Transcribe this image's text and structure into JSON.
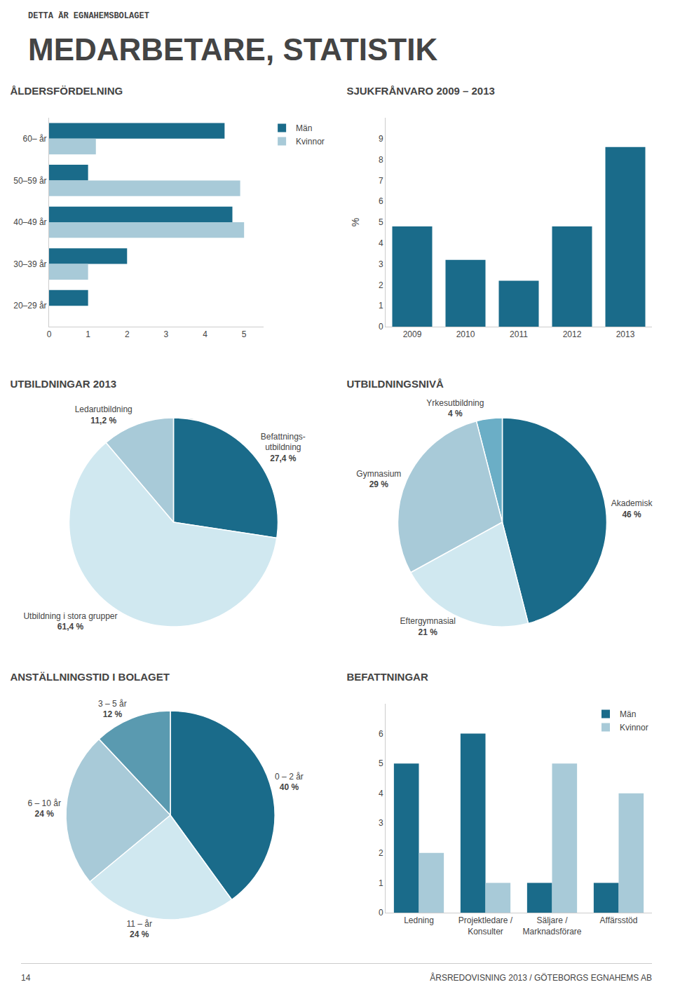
{
  "title": "MEDARBETARE, STATISTIK",
  "subtitle": "DETTA ÄR EGNAHEMSBOLAGET",
  "annotations": [
    "14",
    "ÅRSREDOVISNING 2013 / GÖTEBORGS EGNAHEMS AB"
  ],
  "chart_data": [
    {
      "type": "bar",
      "orientation": "horizontal",
      "title": "ÅLDERSFÖRDELNING",
      "categories": [
        "60– år",
        "50–59 år",
        "40–49 år",
        "30–39 år",
        "20–29 år"
      ],
      "series": [
        {
          "name": "Män",
          "color": "#1a6b8a",
          "values": [
            4.5,
            1.0,
            4.7,
            2.0,
            1.0
          ]
        },
        {
          "name": "Kvinnor",
          "color": "#a8cad8",
          "values": [
            1.2,
            4.9,
            5.0,
            1.0,
            0.0
          ]
        }
      ],
      "xlim": [
        0,
        5.5
      ],
      "xticks": [
        0,
        1,
        2,
        3,
        4,
        5
      ],
      "grid": false,
      "legend": "right"
    },
    {
      "type": "bar",
      "title": "SJUKFRÅNVARO 2009 – 2013",
      "categories": [
        "2009",
        "2010",
        "2011",
        "2012",
        "2013"
      ],
      "values": [
        4.8,
        3.2,
        2.2,
        4.8,
        8.6
      ],
      "color": "#1a6b8a",
      "ylabel": "%",
      "ylim": [
        0,
        10
      ],
      "yticks": [
        0,
        1,
        2,
        3,
        4,
        5,
        6,
        7,
        8,
        9
      ],
      "grid": false
    },
    {
      "type": "pie",
      "title": "UTBILDNINGAR 2013",
      "categories": [
        "Befattnings-\nutbildning",
        "Ledarutbildning",
        "Utbildning i stora grupper"
      ],
      "values": [
        27.4,
        11.2,
        61.4
      ],
      "value_labels": [
        "27,4 %",
        "11,2 %",
        "61,4 %"
      ],
      "colors": [
        "#1a6b8a",
        "#a8cad8",
        "#d0e8f0"
      ]
    },
    {
      "type": "pie",
      "title": "UTBILDNINGSNIVÅ",
      "categories": [
        "Akademisk",
        "Yrkesutbildning",
        "Gymnasium",
        "Eftergymnasial"
      ],
      "values": [
        46,
        4,
        29,
        21
      ],
      "value_labels": [
        "46 %",
        "4 %",
        "29 %",
        "21 %"
      ],
      "colors": [
        "#1a6b8a",
        "#6baec6",
        "#a8cad8",
        "#d0e8f0"
      ]
    },
    {
      "type": "pie",
      "title": "ANSTÄLLNINGSTID I BOLAGET",
      "categories": [
        "0 – 2 år",
        "3 – 5 år",
        "6 – 10 år",
        "11 – år"
      ],
      "values": [
        40,
        12,
        24,
        24
      ],
      "value_labels": [
        "40 %",
        "12 %",
        "24 %",
        "24 %"
      ],
      "colors": [
        "#1a6b8a",
        "#5a9ab0",
        "#a8cad8",
        "#d0e8f0"
      ]
    },
    {
      "type": "bar",
      "title": "BEFATTNINGAR",
      "categories": [
        "Ledning",
        "Projektledare /\nKonsulter",
        "Säljare /\nMarknadsförare",
        "Affärsstöd"
      ],
      "series": [
        {
          "name": "Män",
          "color": "#1a6b8a",
          "values": [
            5,
            6,
            1,
            1
          ]
        },
        {
          "name": "Kvinnor",
          "color": "#a8cad8",
          "values": [
            2,
            1,
            5,
            4
          ]
        }
      ],
      "ylim": [
        0,
        7
      ],
      "yticks": [
        0,
        1,
        2,
        3,
        4,
        5,
        6
      ],
      "grid": false,
      "legend": "upper right"
    }
  ]
}
